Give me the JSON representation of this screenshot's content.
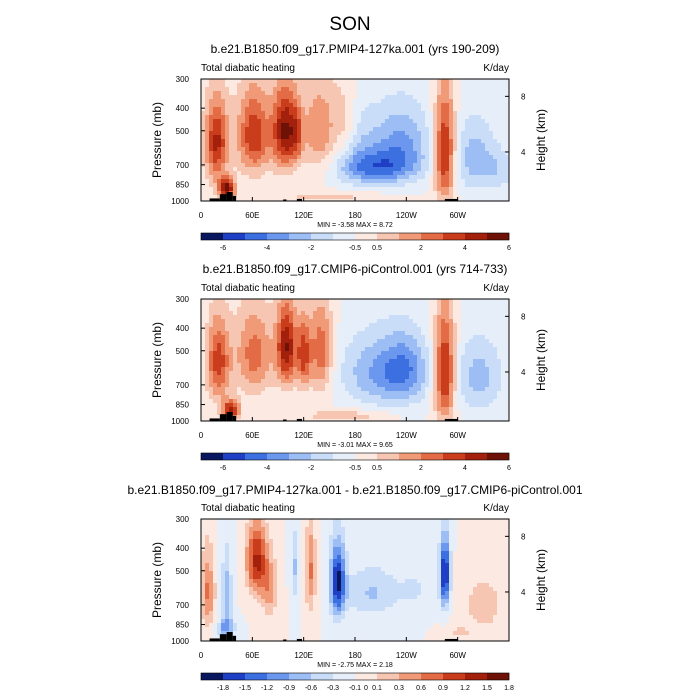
{
  "season_title": "SON",
  "colors": {
    "palette7": [
      "#08175e",
      "#1f3fc4",
      "#3c6fe0",
      "#6b98ee",
      "#9dbdf5",
      "#c9dcf8",
      "#e6eefa",
      "#fbe9e2",
      "#f7c6b2",
      "#f19a77",
      "#e36b45",
      "#c93d1d",
      "#a2200c",
      "#6e1106"
    ],
    "palette_diff": [
      "#08175e",
      "#1f3fc4",
      "#3c6fe0",
      "#6b98ee",
      "#9dbdf5",
      "#c9dcf8",
      "#e6eefa",
      "#fbe9e2",
      "#f7c6b2",
      "#f19a77",
      "#e36b45",
      "#c93d1d",
      "#a2200c",
      "#6e1106"
    ],
    "topography": "#000000"
  },
  "chart_data": [
    {
      "type": "heatmap",
      "title": "b.e21.B1850.f09_g17.PMIP4-127ka.001 (yrs 190-209)",
      "left_label": "Total diabatic heating",
      "right_label": "K/day",
      "ylabel": "Pressure (mb)",
      "ylabel_right": "Height (km)",
      "x_ticks": [
        {
          "lon": 0,
          "label": "0"
        },
        {
          "lon": 60,
          "label": "60E"
        },
        {
          "lon": 120,
          "label": "120E"
        },
        {
          "lon": 180,
          "label": "180"
        },
        {
          "lon": 240,
          "label": "120W"
        },
        {
          "lon": 300,
          "label": "60W"
        }
      ],
      "xlim": [
        0,
        360
      ],
      "y_ticks": [
        300,
        400,
        500,
        700,
        850,
        1000
      ],
      "ylim": [
        300,
        1000
      ],
      "height_ticks": [
        {
          "km": 4,
          "label": "4"
        },
        {
          "km": 8,
          "label": "8"
        }
      ],
      "stats": "MIN =  -3.58  MAX =   8.72",
      "colorbar_labels": [
        "-6",
        "-4",
        "-2",
        "-0.5",
        "0.5",
        "2",
        "4",
        "6"
      ],
      "colorbar_label_positions": [
        1,
        3,
        5,
        7,
        8,
        10,
        12,
        14
      ],
      "palette": "palette7",
      "blobs": [
        {
          "lon": 18,
          "p": 560,
          "wl": 14,
          "wp": 230,
          "v": 0.75
        },
        {
          "lon": 62,
          "p": 520,
          "wl": 20,
          "wp": 220,
          "v": 0.7
        },
        {
          "lon": 98,
          "p": 500,
          "wl": 14,
          "wp": 210,
          "v": 0.85
        },
        {
          "lon": 112,
          "p": 520,
          "wl": 8,
          "wp": 150,
          "v": 0.35
        },
        {
          "lon": 140,
          "p": 500,
          "wl": 22,
          "wp": 230,
          "v": 0.45
        },
        {
          "lon": 170,
          "p": 470,
          "wl": 14,
          "wp": 190,
          "v": 0.25
        },
        {
          "lon": 205,
          "p": 720,
          "wl": 45,
          "wp": 120,
          "v": -0.55
        },
        {
          "lon": 235,
          "p": 560,
          "wl": 32,
          "wp": 200,
          "v": -0.45
        },
        {
          "lon": 180,
          "p": 560,
          "wl": 30,
          "wp": 220,
          "v": -0.25
        },
        {
          "lon": 285,
          "p": 620,
          "wl": 12,
          "wp": 340,
          "v": 0.8
        },
        {
          "lon": 320,
          "p": 650,
          "wl": 25,
          "wp": 240,
          "v": -0.35
        },
        {
          "lon": 350,
          "p": 740,
          "wl": 20,
          "wp": 150,
          "v": -0.2
        },
        {
          "lon": 30,
          "p": 880,
          "wl": 10,
          "wp": 90,
          "v": 0.9
        },
        {
          "lon": 150,
          "p": 960,
          "wl": 60,
          "wp": 50,
          "v": 0.2
        }
      ],
      "topo": [
        {
          "lon": [
            10,
            22
          ],
          "p": 975
        },
        {
          "lon": [
            22,
            30
          ],
          "p": 935
        },
        {
          "lon": [
            30,
            37
          ],
          "p": 915
        },
        {
          "lon": [
            37,
            41
          ],
          "p": 950
        },
        {
          "lon": [
            96,
            100
          ],
          "p": 985
        },
        {
          "lon": [
            112,
            118
          ],
          "p": 980
        },
        {
          "lon": [
            285,
            300
          ],
          "p": 980
        }
      ]
    },
    {
      "type": "heatmap",
      "title": "b.e21.B1850.f09_g17.CMIP6-piControl.001 (yrs 714-733)",
      "left_label": "Total diabatic heating",
      "right_label": "K/day",
      "ylabel": "Pressure (mb)",
      "ylabel_right": "Height (km)",
      "x_ticks": [
        {
          "lon": 0,
          "label": "0"
        },
        {
          "lon": 60,
          "label": "60E"
        },
        {
          "lon": 120,
          "label": "120E"
        },
        {
          "lon": 180,
          "label": "180"
        },
        {
          "lon": 240,
          "label": "120W"
        },
        {
          "lon": 300,
          "label": "60W"
        }
      ],
      "xlim": [
        0,
        360
      ],
      "y_ticks": [
        300,
        400,
        500,
        700,
        850,
        1000
      ],
      "ylim": [
        300,
        1000
      ],
      "height_ticks": [
        {
          "km": 4,
          "label": "4"
        },
        {
          "km": 8,
          "label": "8"
        }
      ],
      "stats": "MIN =  -3.01  MAX =   9.65",
      "colorbar_labels": [
        "-6",
        "-4",
        "-2",
        "-0.5",
        "0.5",
        "2",
        "4",
        "6"
      ],
      "colorbar_label_positions": [
        1,
        3,
        5,
        7,
        8,
        10,
        12,
        14
      ],
      "palette": "palette7",
      "blobs": [
        {
          "lon": 20,
          "p": 560,
          "wl": 14,
          "wp": 230,
          "v": 0.65
        },
        {
          "lon": 62,
          "p": 520,
          "wl": 22,
          "wp": 230,
          "v": 0.5
        },
        {
          "lon": 100,
          "p": 480,
          "wl": 12,
          "wp": 200,
          "v": 0.85
        },
        {
          "lon": 120,
          "p": 520,
          "wl": 8,
          "wp": 180,
          "v": 0.6
        },
        {
          "lon": 140,
          "p": 500,
          "wl": 14,
          "wp": 230,
          "v": 0.55
        },
        {
          "lon": 210,
          "p": 620,
          "wl": 45,
          "wp": 220,
          "v": -0.45
        },
        {
          "lon": 240,
          "p": 600,
          "wl": 25,
          "wp": 200,
          "v": -0.35
        },
        {
          "lon": 285,
          "p": 620,
          "wl": 12,
          "wp": 340,
          "v": 0.8
        },
        {
          "lon": 325,
          "p": 650,
          "wl": 28,
          "wp": 240,
          "v": -0.35
        },
        {
          "lon": 35,
          "p": 900,
          "wl": 10,
          "wp": 90,
          "v": 0.8
        },
        {
          "lon": 170,
          "p": 950,
          "wl": 50,
          "wp": 60,
          "v": 0.25
        }
      ],
      "topo": [
        {
          "lon": [
            10,
            22
          ],
          "p": 975
        },
        {
          "lon": [
            22,
            30
          ],
          "p": 935
        },
        {
          "lon": [
            30,
            37
          ],
          "p": 915
        },
        {
          "lon": [
            37,
            41
          ],
          "p": 950
        },
        {
          "lon": [
            96,
            100
          ],
          "p": 985
        },
        {
          "lon": [
            112,
            118
          ],
          "p": 980
        },
        {
          "lon": [
            285,
            300
          ],
          "p": 980
        }
      ]
    },
    {
      "type": "heatmap",
      "title": "b.e21.B1850.f09_g17.PMIP4-127ka.001 - b.e21.B1850.f09_g17.CMIP6-piControl.001",
      "left_label": "Total diabatic heating",
      "right_label": "K/day",
      "ylabel": "Pressure (mb)",
      "ylabel_right": "Height (km)",
      "x_ticks": [
        {
          "lon": 0,
          "label": "0"
        },
        {
          "lon": 60,
          "label": "60E"
        },
        {
          "lon": 120,
          "label": "120E"
        },
        {
          "lon": 180,
          "label": "180"
        },
        {
          "lon": 240,
          "label": "120W"
        },
        {
          "lon": 300,
          "label": "60W"
        }
      ],
      "xlim": [
        0,
        360
      ],
      "y_ticks": [
        300,
        400,
        500,
        700,
        850,
        1000
      ],
      "ylim": [
        300,
        1000
      ],
      "height_ticks": [
        {
          "km": 4,
          "label": "4"
        },
        {
          "km": 8,
          "label": "8"
        }
      ],
      "stats": "MIN =  -2.75  MAX =   2.18",
      "colorbar_labels": [
        "-1.8",
        "-1.5",
        "-1.2",
        "-0.9",
        "-0.6",
        "-0.3",
        "-0.1",
        "0",
        "0.1",
        "0.3",
        "0.6",
        "0.9",
        "1.2",
        "1.5",
        "1.8"
      ],
      "colorbar_label_positions": [
        1,
        2,
        3,
        4,
        5,
        6,
        7,
        7.5,
        8,
        9,
        10,
        11,
        12,
        13,
        14
      ],
      "palette": "palette_diff",
      "blobs": [
        {
          "lon": 8,
          "p": 620,
          "wl": 8,
          "wp": 250,
          "v": 0.45
        },
        {
          "lon": 30,
          "p": 620,
          "wl": 6,
          "wp": 260,
          "v": -0.35
        },
        {
          "lon": 65,
          "p": 450,
          "wl": 12,
          "wp": 160,
          "v": 0.75
        },
        {
          "lon": 80,
          "p": 600,
          "wl": 10,
          "wp": 180,
          "v": 0.35
        },
        {
          "lon": 110,
          "p": 480,
          "wl": 5,
          "wp": 170,
          "v": -0.3
        },
        {
          "lon": 128,
          "p": 500,
          "wl": 6,
          "wp": 220,
          "v": 0.45
        },
        {
          "lon": 160,
          "p": 560,
          "wl": 9,
          "wp": 200,
          "v": -0.9
        },
        {
          "lon": 200,
          "p": 620,
          "wl": 30,
          "wp": 160,
          "v": -0.3
        },
        {
          "lon": 250,
          "p": 600,
          "wl": 20,
          "wp": 140,
          "v": -0.15
        },
        {
          "lon": 285,
          "p": 520,
          "wl": 6,
          "wp": 180,
          "v": -0.95
        },
        {
          "lon": 330,
          "p": 700,
          "wl": 28,
          "wp": 250,
          "v": 0.2
        },
        {
          "lon": 30,
          "p": 880,
          "wl": 10,
          "wp": 80,
          "v": -0.45
        },
        {
          "lon": 300,
          "p": 920,
          "wl": 15,
          "wp": 60,
          "v": 0.15
        }
      ],
      "topo": [
        {
          "lon": [
            10,
            22
          ],
          "p": 975
        },
        {
          "lon": [
            22,
            30
          ],
          "p": 935
        },
        {
          "lon": [
            30,
            37
          ],
          "p": 915
        },
        {
          "lon": [
            37,
            41
          ],
          "p": 950
        },
        {
          "lon": [
            96,
            100
          ],
          "p": 985
        },
        {
          "lon": [
            112,
            118
          ],
          "p": 980
        },
        {
          "lon": [
            285,
            300
          ],
          "p": 980
        }
      ]
    }
  ]
}
